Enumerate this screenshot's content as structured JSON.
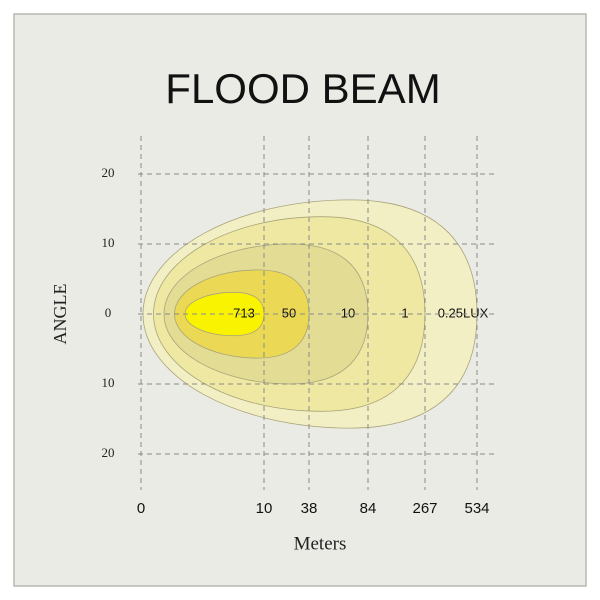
{
  "chart_data": {
    "type": "beam",
    "title": "FLOOD  BEAM",
    "ylabel": "ANGLE",
    "xlabel": "Meters",
    "ylim": [
      -24,
      24
    ],
    "yticks": [
      {
        "value": -20,
        "label": "20"
      },
      {
        "value": -10,
        "label": "10"
      },
      0,
      10,
      20
    ],
    "xticks": [
      0,
      10,
      38,
      84,
      267,
      534
    ],
    "grid": true,
    "contours": [
      {
        "name": "0.25LUX",
        "distance": 534,
        "half_angle": 16.3,
        "color": "#f3efc4"
      },
      {
        "name": "1",
        "distance": 267,
        "half_angle": 13.9,
        "color": "#eee8a2"
      },
      {
        "name": "10",
        "distance": 84,
        "half_angle": 10,
        "color": "#e2dc95"
      },
      {
        "name": "50",
        "distance": 38,
        "half_angle": 6.3,
        "color": "#ebd955"
      },
      {
        "name": "713",
        "distance": 10,
        "half_angle": 3.1,
        "color": "#f9f200"
      }
    ]
  }
}
